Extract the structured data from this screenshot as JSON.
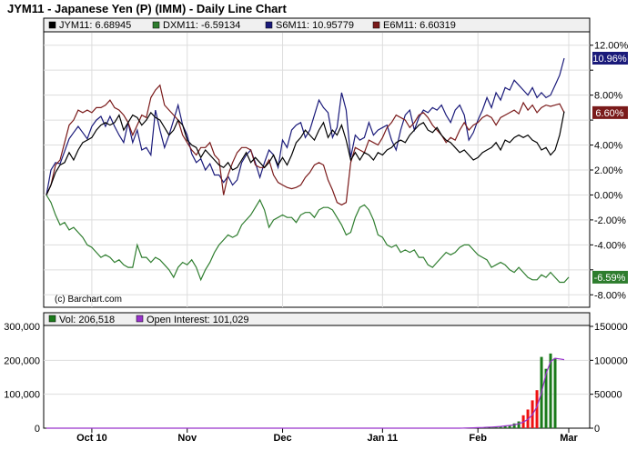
{
  "chart_data": {
    "title": "JYM11 - Japanese Yen (P) (IMM) - Daily Line Chart",
    "type": "line",
    "watermark": "(c) Barchart.com",
    "colors": {
      "JYM11": "#000000",
      "DXM11": "#2e7d2e",
      "S6M11": "#1a1a7a",
      "E6M11": "#7a1a1a",
      "volume": "#1a7a1a",
      "open_interest": "#9933cc",
      "volume_up": "#1a7a1a",
      "volume_down": "#ee1111"
    },
    "legend": {
      "placement": "top",
      "entries": [
        {
          "key": "JYM11",
          "label": "JYM11: 6.68945"
        },
        {
          "key": "DXM11",
          "label": "DXM11: -6.59134"
        },
        {
          "key": "S6M11",
          "label": "S6M11: 10.95779"
        },
        {
          "key": "E6M11",
          "label": "E6M11: 6.60319"
        }
      ]
    },
    "price_panel": {
      "ylim": [
        -9,
        13
      ],
      "y_ticks": [
        12,
        10,
        8,
        6,
        4,
        2,
        0,
        -2,
        -4,
        -6,
        -8
      ],
      "y_tick_labels": [
        "12.00%",
        "",
        "8.00%",
        "",
        "4.00%",
        "2.00%",
        "0.00%",
        "-2.00%",
        "-4.00%",
        "",
        "-8.00%"
      ],
      "end_labels": [
        {
          "key": "S6M11",
          "text": "10.96%",
          "value": 10.96
        },
        {
          "key": "E6M11",
          "text": "6.60%",
          "value": 6.6
        },
        {
          "key": "DXM11",
          "text": "-6.59%",
          "value": -6.59
        }
      ],
      "grid": true,
      "series": [
        {
          "key": "S6M11",
          "values": [
            0,
            2,
            2.6,
            2.5,
            3.5,
            4.5,
            5,
            5.5,
            5,
            4.5,
            5.5,
            6,
            6.3,
            5.5,
            6.3,
            5.5,
            4.8,
            4.2,
            5.8,
            4.2,
            5.2,
            3.6,
            3.8,
            3.2,
            6.8,
            5.2,
            3.8,
            4.8,
            6,
            7.2,
            5.6,
            4.8,
            3.3,
            2.6,
            2.9,
            2,
            2.5,
            1.6,
            1.6,
            1,
            1.5,
            0.8,
            1.2,
            2.6,
            3.2,
            3.6,
            2.6,
            1.4,
            2.6,
            3.6,
            3.2,
            2.2,
            4.4,
            3.8,
            5.2,
            5.6,
            5.8,
            4.6,
            5.2,
            6.4,
            7.6,
            7,
            6.6,
            4.6,
            5.4,
            8.2,
            6.8,
            3,
            4.8,
            4.4,
            4.6,
            5.8,
            4.8,
            5.2,
            5.4,
            5.6,
            4.4,
            3.6,
            5.2,
            6.4,
            6.8,
            5.2,
            6.2,
            6.8,
            6.6,
            7,
            6.8,
            7.2,
            6.4,
            5.8,
            6.8,
            7.2,
            6.4,
            4.4,
            5,
            6,
            6.8,
            7.8,
            7,
            8.2,
            7.6,
            8.6,
            8.4,
            9.2,
            8.8,
            8.4,
            8,
            8.6,
            7.8,
            8.2,
            7.8,
            8,
            8.8,
            9.6,
            10.96
          ]
        },
        {
          "key": "E6M11",
          "values": [
            0,
            0.8,
            2.4,
            2.8,
            4.2,
            5.6,
            6,
            6.8,
            6.6,
            6.8,
            6.6,
            7,
            7,
            7.2,
            7.6,
            7,
            6.8,
            6.4,
            5.8,
            4.8,
            5.6,
            6.4,
            6.2,
            7.8,
            8.4,
            8.8,
            7.2,
            6.8,
            6.4,
            6,
            4.8,
            4.2,
            3.6,
            3.2,
            3.8,
            3.8,
            4.2,
            3.2,
            2.8,
            0,
            1.6,
            2.6,
            3.4,
            3.8,
            3.8,
            3.6,
            2.4,
            2.2,
            2.2,
            2.8,
            1.6,
            1,
            0.8,
            0.6,
            0.5,
            0.6,
            0.8,
            1.4,
            1.8,
            2.4,
            2.6,
            2.4,
            1.2,
            0.4,
            -0.6,
            -0.8,
            -0.6,
            2.6,
            3.8,
            3.6,
            3.4,
            4.4,
            4.2,
            4,
            4.6,
            5.4,
            5.8,
            6.4,
            6.2,
            6,
            5.4,
            5.8,
            6.4,
            6.6,
            6.2,
            5.6,
            5.2,
            4.8,
            4.2,
            4.6,
            4.4,
            5.2,
            5.8,
            5.2,
            5.6,
            5.8,
            6.2,
            6.4,
            6.2,
            5.6,
            6.2,
            6.4,
            6.6,
            6.8,
            6.5,
            7.4,
            6.8,
            7.2,
            6.6,
            7,
            7.2,
            7.1,
            7.2,
            7.3,
            6.6
          ]
        },
        {
          "key": "JYM11",
          "values": [
            0,
            0.8,
            1.8,
            2.4,
            2.6,
            3.4,
            2.8,
            3.6,
            4.2,
            4.4,
            4.6,
            5.2,
            5.6,
            5.8,
            5.6,
            5.8,
            6.4,
            5.2,
            5.8,
            6.4,
            6.2,
            5.6,
            6,
            6.6,
            6.2,
            6,
            5.4,
            4.8,
            5.2,
            6,
            5.6,
            4.4,
            4,
            3.8,
            3,
            3.6,
            3.2,
            2.8,
            2.4,
            2.2,
            2.6,
            2,
            2.2,
            2.8,
            3.4,
            2.6,
            3,
            2.6,
            2.2,
            2.6,
            3.2,
            2.4,
            3,
            2.4,
            3.2,
            4.2,
            4.6,
            5.2,
            4.8,
            4.4,
            5.2,
            5.8,
            4.6,
            5.2,
            4.8,
            5.6,
            4.4,
            2.8,
            3.4,
            2.8,
            3.4,
            3.2,
            2.8,
            3.4,
            3.2,
            3.6,
            3.8,
            4.2,
            4.4,
            4.2,
            4.8,
            5.2,
            5.6,
            5.8,
            5.2,
            5,
            5.4,
            4.8,
            4.4,
            4.2,
            3.8,
            3.4,
            3.6,
            3.2,
            2.8,
            3,
            3.4,
            3.6,
            3.8,
            4.2,
            3.6,
            4.4,
            4.2,
            4.6,
            4.8,
            4.6,
            4.8,
            4.4,
            4.2,
            3.6,
            3.8,
            3.2,
            3.6,
            4.8,
            6.69
          ]
        },
        {
          "key": "DXM11",
          "values": [
            0,
            -0.6,
            -1.6,
            -2.4,
            -2.2,
            -2.8,
            -2.6,
            -3,
            -3.4,
            -4,
            -4.2,
            -4.6,
            -5,
            -4.8,
            -5,
            -5.4,
            -5.2,
            -5.6,
            -5.8,
            -5.8,
            -4,
            -5,
            -5,
            -5.4,
            -5,
            -5.2,
            -5.6,
            -6,
            -6.6,
            -5.8,
            -5.4,
            -5.6,
            -5.2,
            -5.8,
            -6.8,
            -6,
            -5.4,
            -4.6,
            -4,
            -3.6,
            -3.2,
            -3.4,
            -3.2,
            -2.4,
            -2,
            -1.6,
            -1,
            -0.4,
            -1.2,
            -2.6,
            -2,
            -1.8,
            -1.6,
            -1.8,
            -1.8,
            -2.2,
            -1.6,
            -1.4,
            -1.4,
            -1.8,
            -1.2,
            -1,
            -1,
            -1.2,
            -1.8,
            -2.4,
            -3.2,
            -3,
            -1.8,
            -1,
            -0.8,
            -1.2,
            -2,
            -3.2,
            -3.4,
            -4,
            -4.2,
            -4,
            -4.6,
            -4.4,
            -4.6,
            -4.4,
            -5,
            -5,
            -5.6,
            -5.8,
            -5.4,
            -5,
            -4.6,
            -4.8,
            -4.6,
            -4.2,
            -4,
            -4,
            -4.4,
            -4.8,
            -5,
            -5.2,
            -5.8,
            -5.6,
            -5.4,
            -5.6,
            -6,
            -6.2,
            -5.8,
            -6.2,
            -6.6,
            -6.8,
            -6.8,
            -6.4,
            -6.6,
            -6.2,
            -6.6,
            -7,
            -7,
            -6.59
          ]
        }
      ]
    },
    "volume_panel": {
      "legend": [
        {
          "key": "volume",
          "label": "Vol: 206,518"
        },
        {
          "key": "open_interest",
          "label": "Open Interest: 101,029"
        }
      ],
      "left_ylim": [
        0,
        300000
      ],
      "left_y_tick_labels": [
        "300,000",
        "200,000",
        "100,000",
        "0"
      ],
      "right_ylim": [
        0,
        150000
      ],
      "right_y_tick_labels": [
        "150000",
        "100000",
        "50000",
        "0"
      ],
      "volume": [
        0,
        0,
        0,
        0,
        0,
        0,
        0,
        0,
        0,
        0,
        0,
        0,
        0,
        0,
        0,
        0,
        0,
        0,
        0,
        0,
        0,
        0,
        0,
        0,
        0,
        0,
        0,
        0,
        0,
        0,
        0,
        0,
        0,
        0,
        0,
        0,
        0,
        0,
        0,
        0,
        0,
        0,
        0,
        0,
        0,
        0,
        0,
        0,
        0,
        0,
        0,
        0,
        0,
        0,
        0,
        0,
        0,
        0,
        0,
        0,
        0,
        0,
        0,
        0,
        0,
        0,
        0,
        0,
        0,
        0,
        0,
        0,
        0,
        0,
        0,
        0,
        0,
        0,
        0,
        0,
        0,
        0,
        0,
        0,
        0,
        0,
        0,
        0,
        0,
        0,
        0,
        0,
        0,
        0,
        0,
        0,
        1500,
        2000,
        2500,
        3000,
        4000,
        6000,
        9000,
        14000,
        20000,
        38000,
        55000,
        82000,
        112000,
        210000,
        175000,
        220000,
        206518
      ],
      "volume_down_days": [
        105,
        106,
        107,
        108
      ],
      "open_interest": [
        0,
        0,
        0,
        0,
        0,
        0,
        0,
        0,
        0,
        0,
        0,
        0,
        0,
        0,
        0,
        0,
        0,
        0,
        0,
        0,
        0,
        0,
        0,
        0,
        0,
        0,
        0,
        0,
        0,
        0,
        0,
        0,
        0,
        0,
        0,
        0,
        0,
        0,
        0,
        0,
        0,
        0,
        0,
        0,
        0,
        0,
        0,
        0,
        0,
        0,
        0,
        0,
        0,
        0,
        0,
        0,
        0,
        0,
        0,
        0,
        0,
        0,
        0,
        0,
        0,
        0,
        0,
        0,
        0,
        0,
        0,
        0,
        0,
        0,
        0,
        0,
        0,
        0,
        0,
        0,
        0,
        0,
        0,
        0,
        0,
        0,
        0,
        0,
        0,
        0,
        0,
        0,
        200,
        400,
        600,
        800,
        1000,
        1300,
        1600,
        2000,
        2600,
        3300,
        4000,
        5000,
        6500,
        9000,
        13000,
        20000,
        32000,
        52000,
        80000,
        98000,
        103000,
        102000,
        101029
      ]
    },
    "x_axis": {
      "ticks": [
        {
          "label": "Oct 10",
          "index": 10
        },
        {
          "label": "Nov",
          "index": 31
        },
        {
          "label": "Dec",
          "index": 52
        },
        {
          "label": "Jan 11",
          "index": 74
        },
        {
          "label": "Feb",
          "index": 95
        },
        {
          "label": "Mar",
          "index": 115
        }
      ]
    }
  }
}
